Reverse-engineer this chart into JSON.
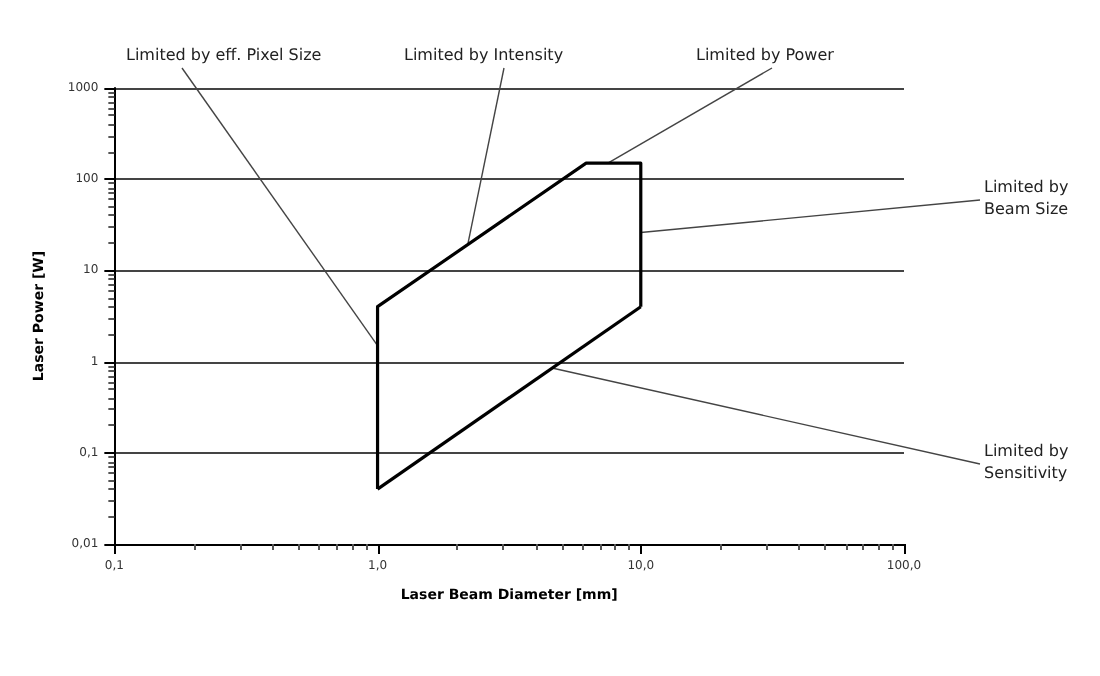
{
  "chart_data": {
    "type": "line",
    "xlabel": "Laser Beam Diameter [mm]",
    "ylabel": "Laser Power [W]",
    "series": [
      {
        "color": "#000000",
        "x": [
          1,
          1,
          6.2,
          10,
          10
        ],
        "values": [
          0.04,
          4,
          150,
          150,
          4
        ]
      },
      {
        "color": "#000000",
        "x": [
          1,
          10
        ],
        "values": [
          0.04,
          4
        ]
      }
    ],
    "log": "xy",
    "xlim": [
      0.1,
      100
    ],
    "ylim": [
      0.01,
      1000
    ],
    "xticks": [
      {
        "value": 0.1,
        "label": "0,1"
      },
      {
        "value": 1,
        "label": "1,0"
      },
      {
        "value": 10,
        "label": "10,0"
      },
      {
        "value": 100,
        "label": "100,0"
      }
    ],
    "yticks": [
      {
        "value": 0.01,
        "label": "0,01"
      },
      {
        "value": 0.1,
        "label": "0,1"
      },
      1,
      10,
      100,
      1000
    ],
    "grid": "y",
    "marker": "none",
    "line_style": "solid",
    "annotations": [
      {
        "text": "Limited by eff. Pixel Size",
        "x": 1,
        "y": 1.5
      },
      {
        "text": "Limited by Intensity",
        "x": 2.2,
        "y": 19
      },
      {
        "text": "Limited by Power",
        "x": 7.5,
        "y": 150
      },
      {
        "text": "Limited by Beam Size",
        "x": 10,
        "y": 26
      },
      {
        "text": "Limited by Sensitivity",
        "x": 4.6,
        "y": 0.85
      }
    ]
  }
}
